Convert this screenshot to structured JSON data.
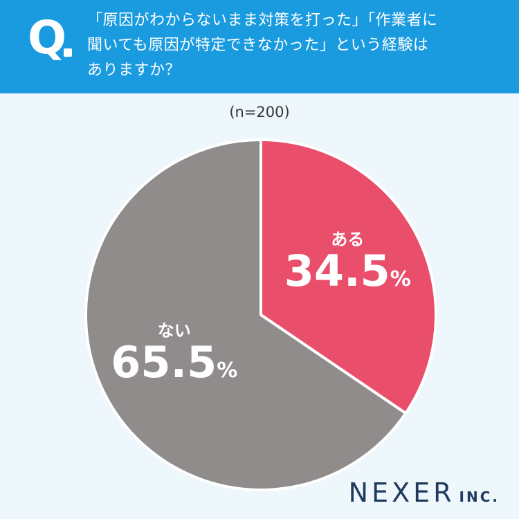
{
  "header": {
    "q_letter": "Q",
    "question_lines": [
      "「原因がわからないまま対策を打った」「作業者に",
      "聞いても原因が特定できなかった」という経験は",
      "ありますか？"
    ]
  },
  "chart_data": {
    "type": "pie",
    "title": "「原因がわからないまま対策を打った」「作業者に聞いても原因が特定できなかった」という経験はありますか？",
    "sample_size": "(n=200)",
    "categories": [
      "ある",
      "ない"
    ],
    "values": [
      34.5,
      65.5
    ],
    "value_labels": [
      "34.5",
      "65.5"
    ],
    "unit": "%",
    "colors": [
      "#e94e6b",
      "#908c8c"
    ],
    "start": "12 o'clock",
    "direction": "clockwise",
    "legend": "none"
  },
  "logo": {
    "main": "NEXER",
    "suffix": "INC."
  },
  "colors": {
    "header": "#1a9be0",
    "background": "#eef7fc",
    "logo": "#1f3a5c"
  }
}
